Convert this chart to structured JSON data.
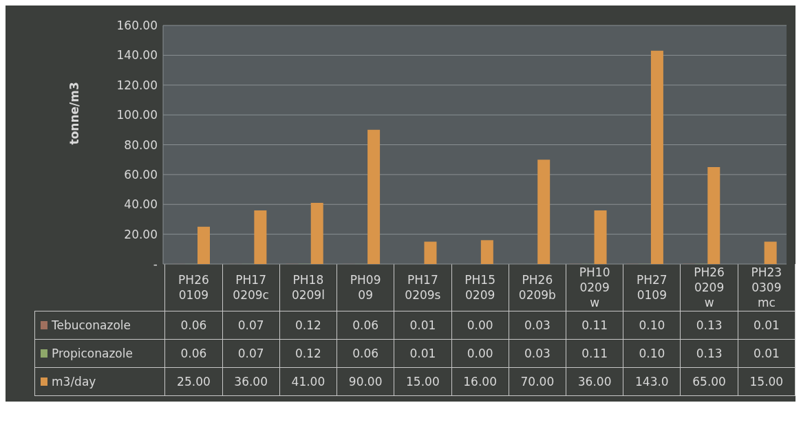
{
  "chart_data": {
    "type": "bar",
    "ylabel": "tonne/m3",
    "categories": [
      "PH26\n0109",
      "PH17\n0209c",
      "PH18\n0209l",
      "PH09\n09",
      "PH17\n0209s",
      "PH15\n0209",
      "PH26\n0209b",
      "PH10\n0209\nw",
      "PH27\n0109",
      "PH26\n0209\nw",
      "PH23\n0309\nmc"
    ],
    "series": [
      {
        "name": "Tebuconazole",
        "color": "#a0705e",
        "values": [
          0.06,
          0.07,
          0.12,
          0.06,
          0.01,
          0.0,
          0.03,
          0.11,
          0.1,
          0.13,
          0.01
        ],
        "value_labels": [
          "0.06",
          "0.07",
          "0.12",
          "0.06",
          "0.01",
          "0.00",
          "0.03",
          "0.11",
          "0.10",
          "0.13",
          "0.01"
        ]
      },
      {
        "name": "Propiconazole",
        "color": "#8fa86a",
        "values": [
          0.06,
          0.07,
          0.12,
          0.06,
          0.01,
          0.0,
          0.03,
          0.11,
          0.1,
          0.13,
          0.01
        ],
        "value_labels": [
          "0.06",
          "0.07",
          "0.12",
          "0.06",
          "0.01",
          "0.00",
          "0.03",
          "0.11",
          "0.10",
          "0.13",
          "0.01"
        ]
      },
      {
        "name": "m3/day",
        "color": "#d9954a",
        "values": [
          25,
          36,
          41,
          90,
          15,
          16,
          70,
          36,
          143,
          65,
          15
        ],
        "value_labels": [
          "25.00",
          "36.00",
          "41.00",
          "90.00",
          "15.00",
          "16.00",
          "70.00",
          "36.00",
          "143.0",
          "65.00",
          "15.00"
        ]
      }
    ],
    "ylim": [
      0,
      160
    ],
    "yticks": [
      {
        "value": 0,
        "label": "-"
      },
      {
        "value": 20,
        "label": "20.00"
      },
      {
        "value": 40,
        "label": "40.00"
      },
      {
        "value": 60,
        "label": "60.00"
      },
      {
        "value": 80,
        "label": "80.00"
      },
      {
        "value": 100,
        "label": "100.00"
      },
      {
        "value": 120,
        "label": "120.00"
      },
      {
        "value": 140,
        "label": "140.00"
      },
      {
        "value": 160,
        "label": "160.00"
      }
    ],
    "grid": "y",
    "legend": "bottom"
  }
}
